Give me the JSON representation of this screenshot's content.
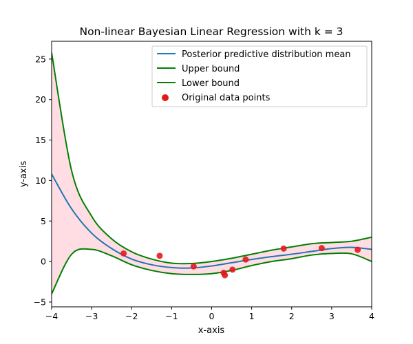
{
  "chart_data": {
    "type": "line",
    "title": "Non-linear Bayesian Linear Regression with k = 3",
    "xlabel": "x-axis",
    "ylabel": "y-axis",
    "xlim": [
      -4,
      4
    ],
    "ylim": [
      -5.6,
      27.2
    ],
    "xticks": [
      "−4",
      "−3",
      "−2",
      "−1",
      "0",
      "1",
      "2",
      "3",
      "4"
    ],
    "yticks": [
      "−5",
      "0",
      "5",
      "10",
      "15",
      "20",
      "25"
    ],
    "xtick_values": [
      -4,
      -3,
      -2,
      -1,
      0,
      1,
      2,
      3,
      4
    ],
    "ytick_values": [
      -5,
      0,
      5,
      10,
      15,
      20,
      25
    ],
    "legend_position": "top-right",
    "grid": false,
    "series": [
      {
        "name": "Posterior predictive distribution mean",
        "color": "#1f77b4",
        "x": [
          -4,
          -3.5,
          -3,
          -2.5,
          -2,
          -1.5,
          -1,
          -0.5,
          0,
          0.5,
          1,
          1.5,
          2,
          2.5,
          3,
          3.5,
          4
        ],
        "y": [
          10.8,
          6.5,
          3.5,
          1.6,
          0.3,
          -0.4,
          -0.75,
          -0.8,
          -0.55,
          -0.15,
          0.25,
          0.6,
          0.9,
          1.25,
          1.6,
          1.75,
          1.5
        ]
      },
      {
        "name": "Upper bound",
        "color": "#007f00",
        "x": [
          -4,
          -3.5,
          -3,
          -2.5,
          -2,
          -1.5,
          -1,
          -0.5,
          0,
          0.5,
          1,
          1.5,
          2,
          2.5,
          3,
          3.5,
          4
        ],
        "y": [
          25.8,
          11.2,
          5.6,
          2.8,
          1.2,
          0.3,
          -0.2,
          -0.25,
          0.0,
          0.4,
          0.9,
          1.4,
          1.8,
          2.2,
          2.35,
          2.5,
          3.0
        ]
      },
      {
        "name": "Lower bound",
        "color": "#007f00",
        "x": [
          -4,
          -3.5,
          -3,
          -2.5,
          -2,
          -1.5,
          -1,
          -0.5,
          0,
          0.5,
          1,
          1.5,
          2,
          2.5,
          3,
          3.5,
          4
        ],
        "y": [
          -4.0,
          0.9,
          1.5,
          0.7,
          -0.4,
          -1.1,
          -1.5,
          -1.6,
          -1.5,
          -1.1,
          -0.5,
          0.0,
          0.35,
          0.8,
          1.0,
          0.95,
          0.0
        ]
      }
    ],
    "scatter": {
      "name": "Original data points",
      "color": "#e31a1c",
      "x": [
        -2.2,
        -1.3,
        -0.45,
        0.3,
        0.33,
        0.52,
        0.85,
        1.8,
        2.75,
        3.65
      ],
      "y": [
        1.0,
        0.7,
        -0.6,
        -1.4,
        -1.7,
        -1.0,
        0.25,
        1.6,
        1.65,
        1.45
      ]
    },
    "band_color": "#ffdde3"
  }
}
